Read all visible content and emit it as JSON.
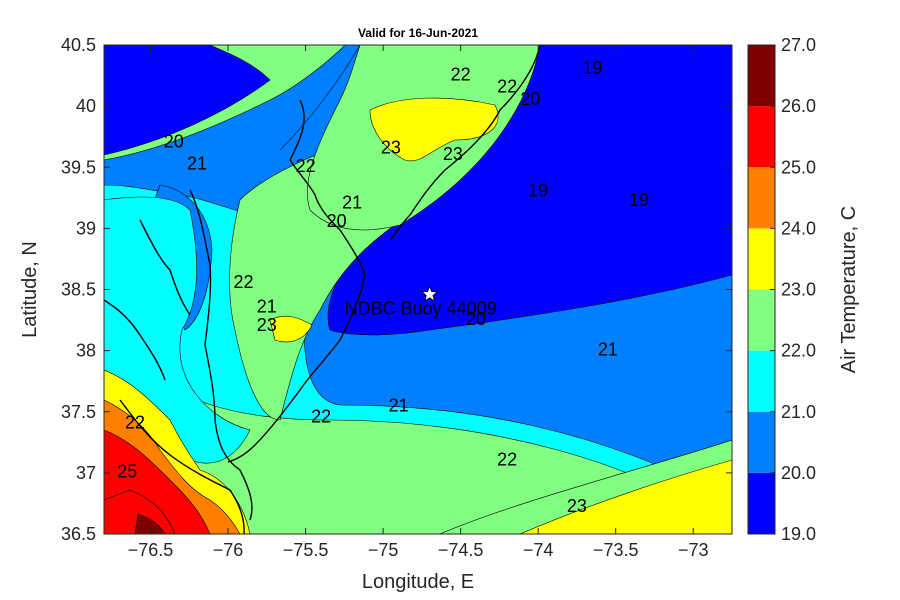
{
  "chart_data": {
    "type": "heatmap",
    "title": "Valid for 16-Jun-2021",
    "xlabel": "Longitude, E",
    "ylabel": "Latitude, N",
    "xlim": [
      -76.8,
      -72.75
    ],
    "ylim": [
      36.5,
      40.5
    ],
    "x_ticks": [
      -76.5,
      -76,
      -75.5,
      -75,
      -74.5,
      -74,
      -73.5,
      -73
    ],
    "x_tick_labels": [
      "−76.5",
      "−76",
      "−75.5",
      "−75",
      "−74.5",
      "−74",
      "−73.5",
      "−73"
    ],
    "y_ticks": [
      36.5,
      37,
      37.5,
      38,
      38.5,
      39,
      39.5,
      40,
      40.5
    ],
    "y_tick_labels": [
      "36.5",
      "37",
      "37.5",
      "38",
      "38.5",
      "39",
      "39.5",
      "40",
      "40.5"
    ],
    "colorbar": {
      "label": "Air Temperature, C",
      "levels": [
        19,
        20,
        21,
        22,
        23,
        24,
        25,
        26,
        27
      ],
      "tick_labels": [
        "19.0",
        "20.0",
        "21.0",
        "22.0",
        "23.0",
        "24.0",
        "25.0",
        "26.0",
        "27.0"
      ],
      "colors": [
        "#0000ff",
        "#0080ff",
        "#00ffff",
        "#80ff80",
        "#ffff00",
        "#ff8000",
        "#ff0000",
        "#800000"
      ]
    },
    "contour_labels": [
      {
        "text": "19",
        "lon": -73.65,
        "lat": 40.3
      },
      {
        "text": "19",
        "lon": -73.35,
        "lat": 39.22
      },
      {
        "text": "19",
        "lon": -74.0,
        "lat": 39.3
      },
      {
        "text": "20",
        "lon": -74.05,
        "lat": 40.05
      },
      {
        "text": "20",
        "lon": -76.35,
        "lat": 39.7
      },
      {
        "text": "20",
        "lon": -75.3,
        "lat": 39.05
      },
      {
        "text": "20",
        "lon": -74.4,
        "lat": 38.25
      },
      {
        "text": "21",
        "lon": -76.2,
        "lat": 39.52
      },
      {
        "text": "21",
        "lon": -75.75,
        "lat": 38.35
      },
      {
        "text": "21",
        "lon": -74.9,
        "lat": 37.54
      },
      {
        "text": "21",
        "lon": -73.55,
        "lat": 38.0
      },
      {
        "text": "21",
        "lon": -75.2,
        "lat": 39.2
      },
      {
        "text": "22",
        "lon": -74.5,
        "lat": 40.25
      },
      {
        "text": "22",
        "lon": -74.2,
        "lat": 40.15
      },
      {
        "text": "22",
        "lon": -75.5,
        "lat": 39.5
      },
      {
        "text": "22",
        "lon": -75.9,
        "lat": 38.55
      },
      {
        "text": "22",
        "lon": -75.4,
        "lat": 37.45
      },
      {
        "text": "22",
        "lon": -74.2,
        "lat": 37.1
      },
      {
        "text": "23",
        "lon": -74.95,
        "lat": 39.65
      },
      {
        "text": "23",
        "lon": -74.55,
        "lat": 39.6
      },
      {
        "text": "23",
        "lon": -75.75,
        "lat": 38.2
      },
      {
        "text": "23",
        "lon": -73.75,
        "lat": 36.72
      },
      {
        "text": "22",
        "lon": -76.6,
        "lat": 37.4
      },
      {
        "text": "25",
        "lon": -76.65,
        "lat": 37.0
      }
    ],
    "annotation": {
      "text": "NDBC Buoy 44009",
      "lon": -74.7,
      "lat": 38.46
    }
  }
}
